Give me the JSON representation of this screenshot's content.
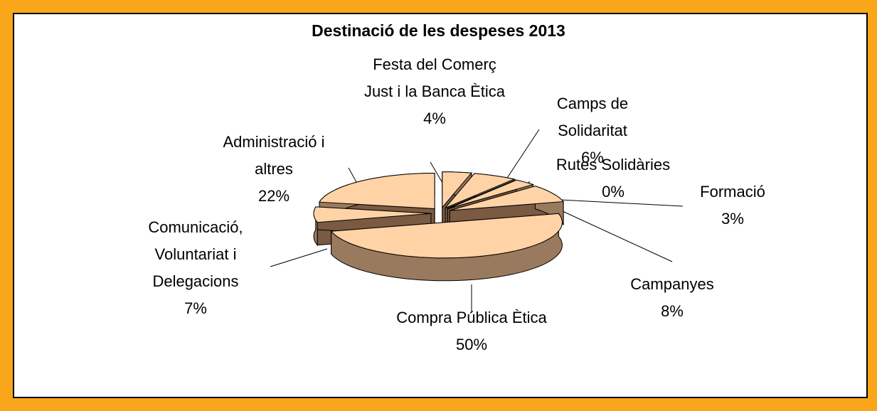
{
  "chart_data": {
    "type": "pie",
    "title": "Destinació de les despeses 2013",
    "categories": [
      "Festa del Comerç Just i la Banca Ètica",
      "Camps de Solidaritat",
      "Rutes Solidàries",
      "Formació",
      "Campanyes",
      "Compra Pública Ètica",
      "Comunicació, Voluntariat i Delegacions",
      "Administració i altres"
    ],
    "values": [
      4,
      6,
      0,
      3,
      8,
      50,
      7,
      22
    ],
    "value_labels": [
      "4%",
      "6%",
      "0%",
      "3%",
      "8%",
      "50%",
      "7%",
      "22%"
    ],
    "color": "#ffd3a6"
  }
}
